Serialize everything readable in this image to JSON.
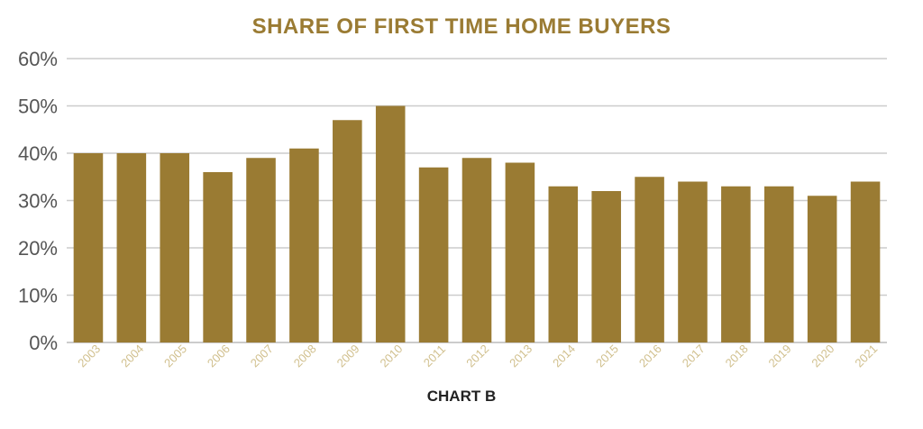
{
  "colors": {
    "bar": "#9a7b33",
    "title": "#9a7b33",
    "xtick": "#d1c08e",
    "grid": "#cccccc"
  },
  "chart_data": {
    "type": "bar",
    "title": "SHARE OF FIRST TIME HOME BUYERS",
    "caption": "CHART B",
    "categories": [
      "2003",
      "2004",
      "2005",
      "2006",
      "2007",
      "2008",
      "2009",
      "2010",
      "2011",
      "2012",
      "2013",
      "2014",
      "2015",
      "2016",
      "2017",
      "2018",
      "2019",
      "2020",
      "2021"
    ],
    "values": [
      40,
      40,
      40,
      36,
      39,
      41,
      47,
      50,
      37,
      39,
      38,
      33,
      32,
      35,
      34,
      33,
      33,
      31,
      34
    ],
    "y_ticks": [
      "0%",
      "10%",
      "20%",
      "30%",
      "40%",
      "50%",
      "60%"
    ],
    "ylim": [
      0,
      60
    ],
    "xlabel": "",
    "ylabel": "",
    "grid": true,
    "legend": false
  }
}
